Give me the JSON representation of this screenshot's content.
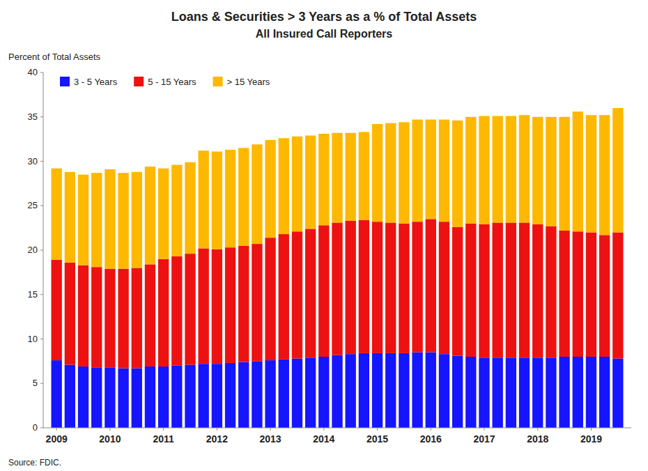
{
  "chart_data": {
    "type": "bar",
    "stacked": true,
    "title": "Loans & Securities > 3 Years as a % of Total Assets",
    "subtitle": "All Insured Call Reporters",
    "y_label": "Percent of Total Assets",
    "source": "Source: FDIC.",
    "x": [
      2009.0,
      2009.25,
      2009.5,
      2009.75,
      2010.0,
      2010.25,
      2010.5,
      2010.75,
      2011.0,
      2011.25,
      2011.5,
      2011.75,
      2012.0,
      2012.25,
      2012.5,
      2012.75,
      2013.0,
      2013.25,
      2013.5,
      2013.75,
      2014.0,
      2014.25,
      2014.5,
      2014.75,
      2015.0,
      2015.25,
      2015.5,
      2015.75,
      2016.0,
      2016.25,
      2016.5,
      2016.75,
      2017.0,
      2017.25,
      2017.5,
      2017.75,
      2018.0,
      2018.25,
      2018.5,
      2018.75,
      2019.0,
      2019.25,
      2019.5
    ],
    "series": [
      {
        "name": "3 - 5 Years",
        "color": "#1515FF",
        "values": [
          7.6,
          7.1,
          6.9,
          6.8,
          6.8,
          6.7,
          6.7,
          6.9,
          6.9,
          7.0,
          7.1,
          7.2,
          7.2,
          7.3,
          7.4,
          7.5,
          7.6,
          7.7,
          7.8,
          7.9,
          8.0,
          8.2,
          8.3,
          8.4,
          8.4,
          8.4,
          8.4,
          8.5,
          8.5,
          8.3,
          8.1,
          8.0,
          7.9,
          7.9,
          7.9,
          7.9,
          7.9,
          7.9,
          8.0,
          8.0,
          8.0,
          8.0,
          7.8
        ]
      },
      {
        "name": "5 - 15 Years",
        "color": "#EE1111",
        "values": [
          11.3,
          11.5,
          11.4,
          11.3,
          11.1,
          11.2,
          11.3,
          11.5,
          12.1,
          12.3,
          12.5,
          13.0,
          12.9,
          13.0,
          13.1,
          13.2,
          13.8,
          14.1,
          14.3,
          14.5,
          14.8,
          14.9,
          15.0,
          15.0,
          14.8,
          14.7,
          14.6,
          14.7,
          15.0,
          14.9,
          14.5,
          15.0,
          15.0,
          15.2,
          15.2,
          15.2,
          15.0,
          14.8,
          14.2,
          14.1,
          14.0,
          13.7,
          14.2
        ]
      },
      {
        "name": "> 15 Years",
        "color": "#FFB800",
        "values": [
          10.3,
          10.2,
          10.2,
          10.6,
          11.2,
          10.8,
          10.8,
          11.0,
          10.2,
          10.3,
          10.3,
          11.0,
          11.0,
          11.0,
          11.0,
          11.2,
          11.0,
          10.8,
          10.7,
          10.5,
          10.3,
          10.1,
          9.9,
          9.9,
          11.0,
          11.2,
          11.4,
          11.5,
          11.2,
          11.5,
          12.0,
          12.0,
          12.2,
          12.0,
          12.0,
          12.1,
          12.1,
          12.3,
          12.8,
          13.5,
          13.2,
          13.5,
          14.0
        ]
      }
    ],
    "xlim": [
      2008.75,
      2019.75
    ],
    "xticks": [
      2009,
      2010,
      2011,
      2012,
      2013,
      2014,
      2015,
      2016,
      2017,
      2018,
      2019
    ],
    "ylim": [
      0,
      40
    ],
    "yticks": [
      0,
      5,
      10,
      15,
      20,
      25,
      30,
      35,
      40
    ],
    "legend": "upper left",
    "grid": false
  }
}
